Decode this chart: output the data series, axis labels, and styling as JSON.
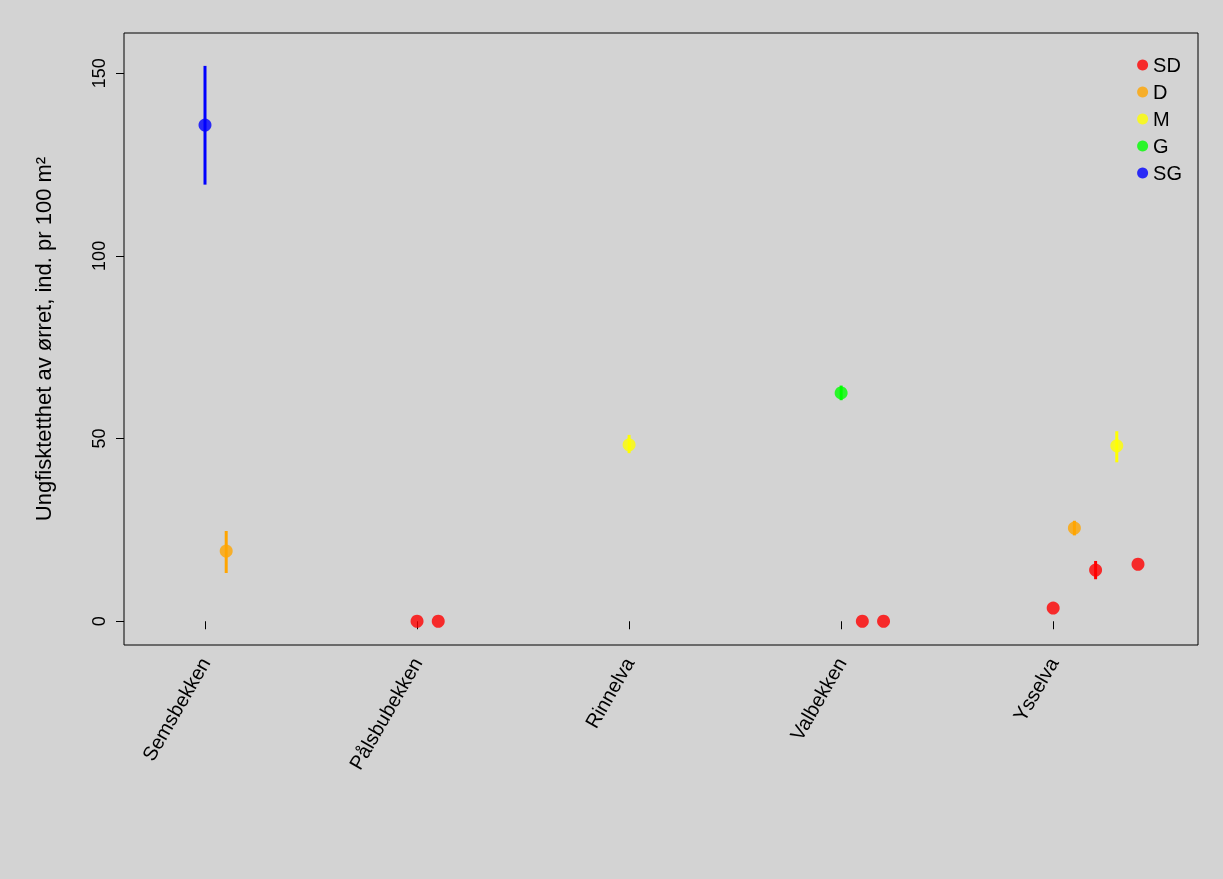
{
  "chart_data": {
    "type": "scatter",
    "ylabel": "Ungfisktetthet av ørret, ind. pr 100 m²",
    "categories": [
      "Semsbekken",
      null,
      null,
      null,
      null,
      null,
      null,
      null,
      null,
      null,
      "Pålsbubekken",
      null,
      null,
      null,
      null,
      null,
      null,
      null,
      null,
      null,
      "Rinnelva",
      null,
      null,
      null,
      null,
      null,
      null,
      null,
      null,
      null,
      "Valbekken",
      null,
      null,
      null,
      null,
      null,
      null,
      null,
      null,
      null,
      "Ysselva",
      null,
      null,
      null,
      null
    ],
    "ylim": [
      -6.5,
      161
    ],
    "yticks": [
      0,
      50,
      100,
      150
    ],
    "series": [
      {
        "name": "SD",
        "color": "#ff0000",
        "values": [
          null,
          null,
          null,
          null,
          null,
          null,
          null,
          null,
          null,
          null,
          0,
          0,
          null,
          null,
          null,
          null,
          null,
          null,
          null,
          null,
          null,
          null,
          null,
          null,
          null,
          null,
          null,
          null,
          null,
          null,
          null,
          0,
          0,
          null,
          null,
          null,
          null,
          null,
          null,
          null,
          3.6,
          null,
          14,
          null,
          15.6
        ],
        "errors": [
          null,
          null,
          null,
          null,
          null,
          null,
          null,
          null,
          null,
          null,
          null,
          null,
          null,
          null,
          null,
          null,
          null,
          null,
          null,
          null,
          null,
          null,
          null,
          null,
          null,
          null,
          null,
          null,
          null,
          null,
          null,
          null,
          null,
          null,
          null,
          null,
          null,
          null,
          null,
          null,
          null,
          null,
          [
            11.5,
            16.5
          ],
          null,
          null
        ]
      },
      {
        "name": "D",
        "color": "#ffa500",
        "values": [
          null,
          19.2,
          null,
          null,
          null,
          null,
          null,
          null,
          null,
          null,
          null,
          null,
          null,
          null,
          null,
          null,
          null,
          null,
          null,
          null,
          null,
          null,
          null,
          null,
          null,
          null,
          null,
          null,
          null,
          null,
          null,
          null,
          null,
          null,
          null,
          null,
          null,
          null,
          null,
          null,
          null,
          25.5,
          null,
          null,
          null
        ],
        "errors": [
          null,
          [
            13.2,
            24.7
          ],
          null,
          null,
          null,
          null,
          null,
          null,
          null,
          null,
          null,
          null,
          null,
          null,
          null,
          null,
          null,
          null,
          null,
          null,
          null,
          null,
          null,
          null,
          null,
          null,
          null,
          null,
          null,
          null,
          null,
          null,
          null,
          null,
          null,
          null,
          null,
          null,
          null,
          null,
          null,
          [
            23.5,
            27.5
          ],
          null,
          null,
          null
        ]
      },
      {
        "name": "M",
        "color": "#ffff00",
        "values": [
          null,
          null,
          null,
          null,
          null,
          null,
          null,
          null,
          null,
          null,
          null,
          null,
          null,
          null,
          null,
          null,
          null,
          null,
          null,
          null,
          48.3,
          null,
          null,
          null,
          null,
          null,
          null,
          null,
          null,
          null,
          null,
          null,
          null,
          null,
          null,
          null,
          null,
          null,
          null,
          null,
          null,
          null,
          null,
          48,
          null
        ],
        "errors": [
          null,
          null,
          null,
          null,
          null,
          null,
          null,
          null,
          null,
          null,
          null,
          null,
          null,
          null,
          null,
          null,
          null,
          null,
          null,
          null,
          [
            46,
            51
          ],
          null,
          null,
          null,
          null,
          null,
          null,
          null,
          null,
          null,
          null,
          null,
          null,
          null,
          null,
          null,
          null,
          null,
          null,
          null,
          null,
          null,
          null,
          [
            43.5,
            52
          ],
          null
        ]
      },
      {
        "name": "G",
        "color": "#00ff00",
        "values": [
          null,
          null,
          null,
          null,
          null,
          null,
          null,
          null,
          null,
          null,
          null,
          null,
          null,
          null,
          null,
          null,
          null,
          null,
          null,
          null,
          null,
          null,
          null,
          null,
          null,
          null,
          null,
          null,
          null,
          null,
          62.5,
          null,
          null,
          null,
          null,
          null,
          null,
          null,
          null,
          null,
          null,
          null,
          null,
          null,
          null
        ],
        "errors": [
          null,
          null,
          null,
          null,
          null,
          null,
          null,
          null,
          null,
          null,
          null,
          null,
          null,
          null,
          null,
          null,
          null,
          null,
          null,
          null,
          null,
          null,
          null,
          null,
          null,
          null,
          null,
          null,
          null,
          null,
          [
            60.5,
            64.5
          ],
          null,
          null,
          null,
          null,
          null,
          null,
          null,
          null,
          null,
          null,
          null,
          null,
          null,
          null
        ]
      },
      {
        "name": "SG",
        "color": "#0000ff",
        "values": [
          135.8,
          null,
          null,
          null,
          null,
          null,
          null,
          null,
          null,
          null,
          null,
          null,
          null,
          null,
          null,
          null,
          null,
          null,
          null,
          null,
          null,
          null,
          null,
          null,
          null,
          null,
          null,
          null,
          null,
          null,
          null,
          null,
          null,
          null,
          null,
          null,
          null,
          null,
          null,
          null,
          null,
          null,
          null,
          null,
          null
        ],
        "errors": [
          [
            119.5,
            152
          ],
          null,
          null,
          null,
          null,
          null,
          null,
          null,
          null,
          null,
          null,
          null,
          null,
          null,
          null,
          null,
          null,
          null,
          null,
          null,
          null,
          null,
          null,
          null,
          null,
          null,
          null,
          null,
          null,
          null,
          null,
          null,
          null,
          null,
          null,
          null,
          null,
          null,
          null,
          null,
          null,
          null,
          null,
          null,
          null
        ]
      }
    ],
    "legend": "top right",
    "marker": "circle",
    "grid": false
  }
}
